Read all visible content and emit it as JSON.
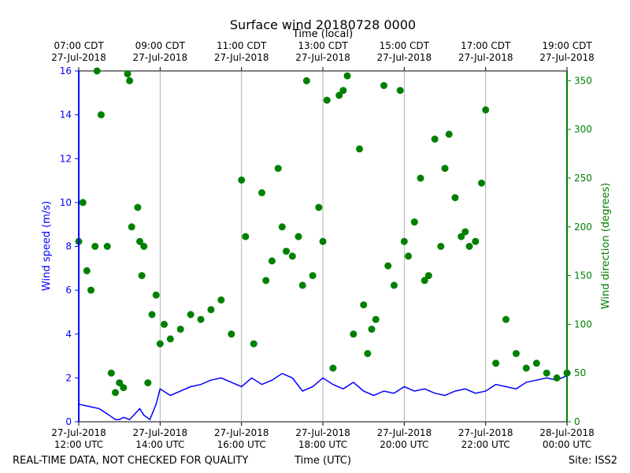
{
  "chart_data": {
    "type": "scatter+line",
    "title": "Surface wind 20180728 0000",
    "top_xlabel": "Time (local)",
    "xlabel": "Time (UTC)",
    "ylabel_left": "Wind speed (m/s)",
    "ylabel_right": "Wind direction (degrees)",
    "x_range_hours_utc": [
      12,
      24
    ],
    "ylim_left": [
      0,
      16
    ],
    "ylim_right": [
      0,
      360
    ],
    "left_ticks": [
      "0",
      "2",
      "4",
      "6",
      "8",
      "10",
      "12",
      "14",
      "16"
    ],
    "right_ticks": [
      "0",
      "50",
      "100",
      "150",
      "200",
      "250",
      "300",
      "350"
    ],
    "bottom_ticks": [
      {
        "line1": "27-Jul-2018",
        "line2": "12:00 UTC"
      },
      {
        "line1": "27-Jul-2018",
        "line2": "14:00 UTC"
      },
      {
        "line1": "27-Jul-2018",
        "line2": "16:00 UTC"
      },
      {
        "line1": "27-Jul-2018",
        "line2": "18:00 UTC"
      },
      {
        "line1": "27-Jul-2018",
        "line2": "20:00 UTC"
      },
      {
        "line1": "27-Jul-2018",
        "line2": "22:00 UTC"
      },
      {
        "line1": "28-Jul-2018",
        "line2": "00:00 UTC"
      }
    ],
    "top_ticks": [
      {
        "line1": "07:00 CDT",
        "line2": "27-Jul-2018"
      },
      {
        "line1": "09:00 CDT",
        "line2": "27-Jul-2018"
      },
      {
        "line1": "11:00 CDT",
        "line2": "27-Jul-2018"
      },
      {
        "line1": "13:00 CDT",
        "line2": "27-Jul-2018"
      },
      {
        "line1": "15:00 CDT",
        "line2": "27-Jul-2018"
      },
      {
        "line1": "17:00 CDT",
        "line2": "27-Jul-2018"
      },
      {
        "line1": "19:00 CDT",
        "line2": "27-Jul-2018"
      }
    ],
    "grid": "vertical",
    "series": [
      {
        "name": "Wind speed",
        "axis": "left",
        "style": "line",
        "color": "#0000ff",
        "x_hours": [
          12.0,
          12.25,
          12.5,
          12.75,
          12.9,
          13.0,
          13.1,
          13.25,
          13.4,
          13.5,
          13.6,
          13.75,
          13.9,
          14.0,
          14.25,
          14.5,
          14.75,
          15.0,
          15.25,
          15.5,
          15.75,
          16.0,
          16.25,
          16.5,
          16.75,
          17.0,
          17.25,
          17.5,
          17.75,
          18.0,
          18.25,
          18.5,
          18.75,
          19.0,
          19.25,
          19.5,
          19.75,
          20.0,
          20.25,
          20.5,
          20.75,
          21.0,
          21.25,
          21.5,
          21.75,
          22.0,
          22.25,
          22.5,
          22.75,
          23.0,
          23.25,
          23.5,
          23.75,
          24.0
        ],
        "values": [
          0.8,
          0.7,
          0.6,
          0.3,
          0.1,
          0.1,
          0.2,
          0.1,
          0.4,
          0.6,
          0.3,
          0.1,
          0.8,
          1.5,
          1.2,
          1.4,
          1.6,
          1.7,
          1.9,
          2.0,
          1.8,
          1.6,
          2.0,
          1.7,
          1.9,
          2.2,
          2.0,
          1.4,
          1.6,
          2.0,
          1.7,
          1.5,
          1.8,
          1.4,
          1.2,
          1.4,
          1.3,
          1.6,
          1.4,
          1.5,
          1.3,
          1.2,
          1.4,
          1.5,
          1.3,
          1.4,
          1.7,
          1.6,
          1.5,
          1.8,
          1.9,
          2.0,
          1.9,
          2.1
        ]
      },
      {
        "name": "Wind direction",
        "axis": "right",
        "style": "points",
        "color": "#008000",
        "x_hours": [
          12.0,
          12.1,
          12.2,
          12.3,
          12.4,
          12.45,
          12.55,
          12.7,
          12.8,
          12.9,
          13.0,
          13.1,
          13.2,
          13.25,
          13.3,
          13.45,
          13.5,
          13.55,
          13.6,
          13.7,
          13.8,
          13.9,
          14.0,
          14.1,
          14.25,
          14.5,
          14.75,
          15.0,
          15.25,
          15.5,
          15.75,
          16.0,
          16.1,
          16.3,
          16.5,
          16.6,
          16.75,
          16.9,
          17.0,
          17.1,
          17.25,
          17.4,
          17.5,
          17.6,
          17.75,
          17.9,
          18.0,
          18.1,
          18.25,
          18.4,
          18.5,
          18.6,
          18.75,
          18.9,
          19.0,
          19.1,
          19.2,
          19.3,
          19.5,
          19.6,
          19.75,
          19.9,
          20.0,
          20.1,
          20.25,
          20.4,
          20.5,
          20.6,
          20.75,
          20.9,
          21.0,
          21.1,
          21.25,
          21.4,
          21.5,
          21.6,
          21.75,
          21.9,
          22.0,
          22.25,
          22.5,
          22.75,
          23.0,
          23.25,
          23.5,
          23.75,
          24.0
        ],
        "values": [
          185,
          225,
          155,
          135,
          180,
          360,
          315,
          180,
          50,
          30,
          40,
          35,
          357,
          350,
          200,
          220,
          185,
          150,
          180,
          40,
          110,
          130,
          80,
          100,
          85,
          95,
          110,
          105,
          115,
          125,
          90,
          248,
          190,
          80,
          235,
          145,
          165,
          260,
          200,
          175,
          170,
          190,
          140,
          350,
          150,
          220,
          185,
          330,
          55,
          335,
          340,
          355,
          90,
          280,
          120,
          70,
          95,
          105,
          345,
          160,
          140,
          340,
          185,
          170,
          205,
          250,
          145,
          150,
          290,
          180,
          260,
          295,
          230,
          190,
          195,
          180,
          185,
          245,
          320,
          60,
          105,
          70,
          55,
          60,
          50,
          45,
          50
        ]
      }
    ],
    "annotations": {
      "footer_left": "REAL-TIME DATA, NOT CHECKED FOR QUALITY",
      "footer_right": "Site: ISS2"
    }
  },
  "colors": {
    "speed": "#0000ff",
    "direction": "#008000",
    "grid": "#b0b0b0"
  }
}
